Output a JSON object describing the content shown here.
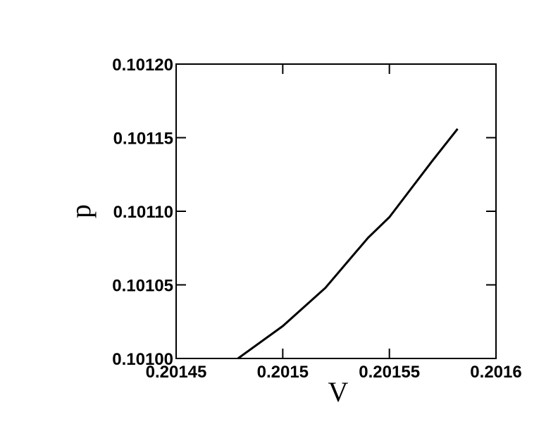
{
  "chart_data": {
    "type": "line",
    "x_label": "V",
    "y_label": "p",
    "x": [
      0.201479,
      0.2015,
      0.20152,
      0.20154,
      0.20155,
      0.20156,
      0.20157,
      0.201582
    ],
    "series": [
      {
        "color": "#000000",
        "values": [
          0.101,
          0.101022,
          0.101048,
          0.101082,
          0.101096,
          0.101115,
          0.101134,
          0.101156
        ]
      }
    ],
    "xlim": [
      0.20145,
      0.2016
    ],
    "xticks": [
      0.20145,
      0.2015,
      0.20155,
      0.2016
    ],
    "ylim": [
      0.101,
      0.1012
    ],
    "yticks": [
      {
        "value": 0.101,
        "label": "0.10100"
      },
      {
        "value": 0.10105,
        "label": "0.10105"
      },
      {
        "value": 0.1011,
        "label": "0.10110"
      },
      {
        "value": 0.10115,
        "label": "0.10115"
      },
      {
        "value": 0.1012,
        "label": "0.10120"
      }
    ]
  }
}
